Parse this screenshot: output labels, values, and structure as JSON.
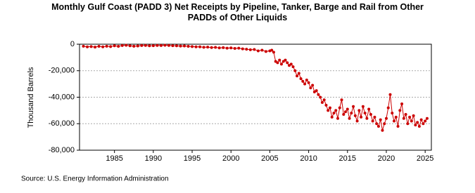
{
  "chart_data": {
    "type": "line",
    "title": "Monthly Gulf Coast (PADD 3) Net Receipts by Pipeline, Tanker, Barge and Rail from Other PADDs of Other Liquids",
    "y_label": "Thousand Barrels",
    "source": "Source: U.S. Energy Information Administration",
    "color": "#cc0000",
    "grid": true,
    "xlim": [
      1980.5,
      2025.8
    ],
    "xticks": [
      1985,
      1990,
      1995,
      2000,
      2005,
      2010,
      2015,
      2020,
      2025
    ],
    "ylim": [
      -80000,
      0
    ],
    "yticks": [
      {
        "value": -80000,
        "label": "-80,000"
      },
      {
        "value": -60000,
        "label": "-60,000"
      },
      {
        "value": -40000,
        "label": "-40,000"
      },
      {
        "value": -20000,
        "label": "-20,000"
      },
      0
    ],
    "x": [
      1981,
      1981.5,
      1982,
      1982.5,
      1983,
      1983.5,
      1984,
      1984.5,
      1985,
      1985.5,
      1986,
      1986.5,
      1987,
      1987.5,
      1988,
      1988.5,
      1989,
      1989.5,
      1990,
      1990.5,
      1991,
      1991.5,
      1992,
      1992.5,
      1993,
      1993.5,
      1994,
      1994.5,
      1995,
      1995.5,
      1996,
      1996.5,
      1997,
      1997.5,
      1998,
      1998.5,
      1999,
      1999.5,
      2000,
      2000.5,
      2001,
      2001.5,
      2002,
      2002.5,
      2003,
      2003.5,
      2004,
      2004.5,
      2005,
      2005.25,
      2005.5,
      2005.75,
      2006,
      2006.25,
      2006.5,
      2006.75,
      2007,
      2007.25,
      2007.5,
      2007.75,
      2008,
      2008.25,
      2008.5,
      2008.75,
      2009,
      2009.25,
      2009.5,
      2009.75,
      2010,
      2010.25,
      2010.5,
      2010.75,
      2011,
      2011.25,
      2011.5,
      2011.75,
      2012,
      2012.25,
      2012.5,
      2012.75,
      2013,
      2013.25,
      2013.5,
      2013.75,
      2014,
      2014.25,
      2014.5,
      2014.75,
      2015,
      2015.25,
      2015.5,
      2015.75,
      2016,
      2016.25,
      2016.5,
      2016.75,
      2017,
      2017.25,
      2017.5,
      2017.75,
      2018,
      2018.25,
      2018.5,
      2018.75,
      2019,
      2019.25,
      2019.5,
      2019.75,
      2020,
      2020.25,
      2020.5,
      2020.75,
      2021,
      2021.25,
      2021.5,
      2021.75,
      2022,
      2022.25,
      2022.5,
      2022.75,
      2023,
      2023.25,
      2023.5,
      2023.75,
      2024,
      2024.25,
      2024.5,
      2024.75,
      2025,
      2025.25
    ],
    "values": [
      -1500,
      -2000,
      -1800,
      -2200,
      -1600,
      -2000,
      -1500,
      -1800,
      -1200,
      -1600,
      -1000,
      -800,
      -1200,
      -1500,
      -1300,
      -1000,
      -900,
      -1200,
      -1100,
      -900,
      -1000,
      -800,
      -900,
      -1100,
      -1200,
      -1400,
      -1300,
      -1600,
      -1800,
      -2000,
      -2000,
      -2300,
      -2200,
      -2500,
      -2400,
      -2800,
      -2600,
      -3000,
      -2800,
      -3200,
      -3000,
      -3500,
      -3800,
      -4200,
      -4000,
      -5000,
      -4500,
      -5500,
      -5000,
      -4500,
      -6000,
      -13000,
      -14000,
      -12000,
      -15000,
      -13000,
      -12000,
      -14000,
      -16000,
      -15000,
      -17000,
      -20000,
      -24000,
      -22000,
      -26000,
      -28000,
      -30000,
      -27000,
      -29000,
      -33000,
      -31000,
      -36000,
      -35000,
      -38000,
      -40000,
      -44000,
      -42000,
      -46000,
      -50000,
      -48000,
      -55000,
      -52000,
      -50000,
      -56000,
      -48000,
      -42000,
      -53000,
      -51000,
      -49000,
      -56000,
      -52000,
      -47000,
      -54000,
      -58000,
      -50000,
      -55000,
      -47000,
      -52000,
      -56000,
      -49000,
      -53000,
      -58000,
      -55000,
      -60000,
      -62000,
      -57000,
      -65000,
      -60000,
      -56000,
      -48000,
      -38000,
      -52000,
      -58000,
      -55000,
      -62000,
      -50000,
      -45000,
      -56000,
      -53000,
      -60000,
      -55000,
      -58000,
      -54000,
      -61000,
      -59000,
      -62000,
      -57000,
      -60000,
      -58000,
      -56000
    ]
  }
}
